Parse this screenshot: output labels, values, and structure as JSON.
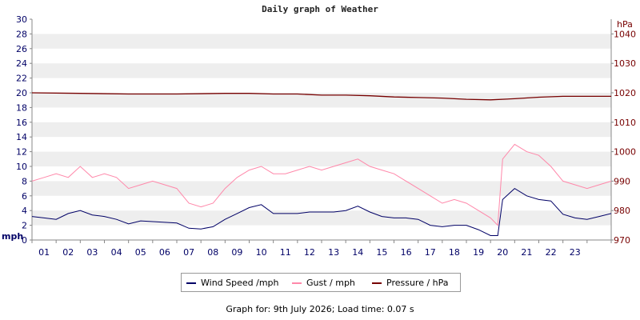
{
  "title": "Daily graph of Weather",
  "left_axis_unit": "mph",
  "right_axis_unit": "hPa",
  "legend": [
    {
      "label": "Wind Speed /mph",
      "color": "#000066"
    },
    {
      "label": "Gust / mph",
      "color": "#ff88aa"
    },
    {
      "label": "Pressure / hPa",
      "color": "#770000"
    }
  ],
  "footer": "Graph for: 9th July 2026; Load time: 0.07 s",
  "colors": {
    "left_axis_text": "#000066",
    "right_axis_text": "#770000",
    "grid_band": "#eeeeee",
    "axis": "#888888"
  },
  "chart_data": {
    "type": "line",
    "title": "Daily graph of Weather",
    "x_tick_labels": [
      "01",
      "02",
      "03",
      "04",
      "05",
      "06",
      "07",
      "08",
      "09",
      "10",
      "11",
      "12",
      "13",
      "14",
      "15",
      "16",
      "17",
      "18",
      "19",
      "20",
      "21",
      "22",
      "23"
    ],
    "x_range_hours": [
      0,
      24
    ],
    "y_left": {
      "unit": "mph",
      "range": [
        0,
        30
      ],
      "ticks": [
        0,
        2,
        4,
        6,
        8,
        10,
        12,
        14,
        16,
        18,
        20,
        22,
        24,
        26,
        28,
        30
      ]
    },
    "y_right": {
      "unit": "hPa",
      "range": [
        970,
        1045
      ],
      "ticks": [
        970,
        980,
        990,
        1000,
        1010,
        1020,
        1030,
        1040
      ]
    },
    "grid": "alternating horizontal bands",
    "legend_position": "bottom",
    "series": [
      {
        "name": "Wind Speed /mph",
        "axis": "left",
        "color": "#000066",
        "x_hours": [
          0,
          0.5,
          1,
          1.5,
          2,
          2.5,
          3,
          3.5,
          4,
          4.5,
          5,
          5.5,
          6,
          6.5,
          7,
          7.5,
          8,
          8.5,
          9,
          9.5,
          10,
          10.5,
          11,
          11.5,
          12,
          12.5,
          13,
          13.5,
          14,
          14.5,
          15,
          15.5,
          16,
          16.5,
          17,
          17.5,
          18,
          18.5,
          19,
          19.3,
          19.5,
          20,
          20.5,
          21,
          21.5,
          22,
          22.5,
          23,
          23.5,
          24
        ],
        "values": [
          3.2,
          3,
          2.8,
          3.6,
          4,
          3.4,
          3.2,
          2.8,
          2.2,
          2.6,
          2.5,
          2.4,
          2.3,
          1.6,
          1.5,
          1.8,
          2.8,
          3.6,
          4.4,
          4.8,
          3.6,
          3.6,
          3.6,
          3.8,
          3.8,
          3.8,
          4,
          4.6,
          3.8,
          3.2,
          3,
          3,
          2.8,
          2,
          1.8,
          2,
          2,
          1.4,
          0.6,
          0.6,
          5.5,
          7,
          6,
          5.5,
          5.3,
          3.5,
          3,
          2.8,
          3.2,
          3.6
        ]
      },
      {
        "name": "Gust / mph",
        "axis": "left",
        "color": "#ff88aa",
        "x_hours": [
          0,
          0.5,
          1,
          1.5,
          2,
          2.5,
          3,
          3.5,
          4,
          4.5,
          5,
          5.5,
          6,
          6.5,
          7,
          7.5,
          8,
          8.5,
          9,
          9.5,
          10,
          10.5,
          11,
          11.5,
          12,
          12.5,
          13,
          13.5,
          14,
          14.5,
          15,
          15.5,
          16,
          16.5,
          17,
          17.5,
          18,
          18.5,
          19,
          19.3,
          19.5,
          20,
          20.5,
          21,
          21.5,
          22,
          22.5,
          23,
          23.5,
          24
        ],
        "values": [
          8,
          8.5,
          9,
          8.5,
          10,
          8.5,
          9,
          8.5,
          7,
          7.5,
          8,
          7.5,
          7,
          5,
          4.5,
          5,
          7,
          8.5,
          9.5,
          10,
          9,
          9,
          9.5,
          10,
          9.5,
          10,
          10.5,
          11,
          10,
          9.5,
          9,
          8,
          7,
          6,
          5,
          5.5,
          5,
          4,
          3,
          2,
          11,
          13,
          12,
          11.5,
          10,
          8,
          7.5,
          7,
          7.5,
          8
        ]
      },
      {
        "name": "Pressure / hPa",
        "axis": "right",
        "color": "#770000",
        "x_hours": [
          0,
          2,
          4,
          6,
          8,
          9,
          10,
          11,
          12,
          13,
          14,
          15,
          16,
          17,
          18,
          19,
          20,
          21,
          22,
          23,
          24
        ],
        "values": [
          1020,
          1019.8,
          1019.6,
          1019.6,
          1019.8,
          1019.8,
          1019.6,
          1019.6,
          1019.2,
          1019.2,
          1019,
          1018.6,
          1018.4,
          1018.2,
          1017.8,
          1017.6,
          1018,
          1018.5,
          1018.8,
          1018.8,
          1018.8
        ]
      }
    ]
  }
}
